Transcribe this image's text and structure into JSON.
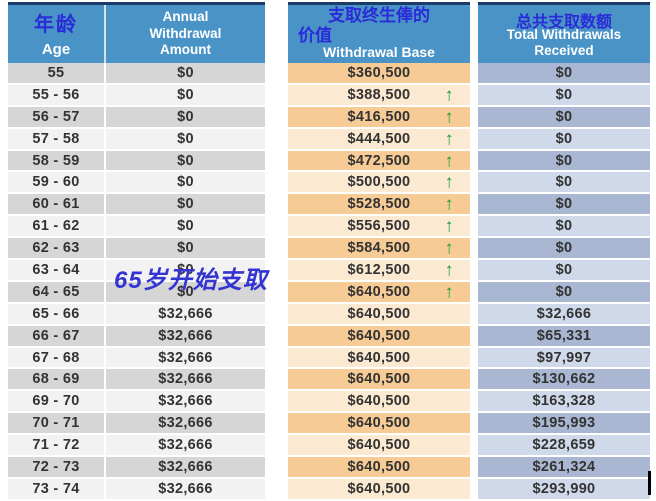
{
  "table": {
    "headers": {
      "age_cn": "年龄",
      "age_en": "Age",
      "annual_lines": [
        "Annual",
        "Withdrawal",
        "Amount"
      ],
      "base_cn_lines": [
        "支取终生俸的",
        "价值"
      ],
      "base_en": "Withdrawal Base",
      "total_cn": "总共支取数额",
      "total_en_lines": [
        "Total Withdrawals",
        "Received"
      ]
    },
    "rows": [
      {
        "age": "55",
        "annual": "$0",
        "base": "$360,500",
        "arrow": false,
        "total": "$0"
      },
      {
        "age": "55 - 56",
        "annual": "$0",
        "base": "$388,500",
        "arrow": true,
        "total": "$0"
      },
      {
        "age": "56 - 57",
        "annual": "$0",
        "base": "$416,500",
        "arrow": true,
        "total": "$0"
      },
      {
        "age": "57 - 58",
        "annual": "$0",
        "base": "$444,500",
        "arrow": true,
        "total": "$0"
      },
      {
        "age": "58 - 59",
        "annual": "$0",
        "base": "$472,500",
        "arrow": true,
        "total": "$0"
      },
      {
        "age": "59 - 60",
        "annual": "$0",
        "base": "$500,500",
        "arrow": true,
        "total": "$0"
      },
      {
        "age": "60 - 61",
        "annual": "$0",
        "base": "$528,500",
        "arrow": true,
        "total": "$0"
      },
      {
        "age": "61 - 62",
        "annual": "$0",
        "base": "$556,500",
        "arrow": true,
        "total": "$0"
      },
      {
        "age": "62 - 63",
        "annual": "$0",
        "base": "$584,500",
        "arrow": true,
        "total": "$0"
      },
      {
        "age": "63 - 64",
        "annual": "$0",
        "base": "$612,500",
        "arrow": true,
        "total": "$0"
      },
      {
        "age": "64 - 65",
        "annual": "$0",
        "base": "$640,500",
        "arrow": true,
        "total": "$0"
      },
      {
        "age": "65 - 66",
        "annual": "$32,666",
        "base": "$640,500",
        "arrow": false,
        "total": "$32,666"
      },
      {
        "age": "66 - 67",
        "annual": "$32,666",
        "base": "$640,500",
        "arrow": false,
        "total": "$65,331"
      },
      {
        "age": "67 - 68",
        "annual": "$32,666",
        "base": "$640,500",
        "arrow": false,
        "total": "$97,997"
      },
      {
        "age": "68 - 69",
        "annual": "$32,666",
        "base": "$640,500",
        "arrow": false,
        "total": "$130,662"
      },
      {
        "age": "69 - 70",
        "annual": "$32,666",
        "base": "$640,500",
        "arrow": false,
        "total": "$163,328"
      },
      {
        "age": "70 - 71",
        "annual": "$32,666",
        "base": "$640,500",
        "arrow": false,
        "total": "$195,993"
      },
      {
        "age": "71 - 72",
        "annual": "$32,666",
        "base": "$640,500",
        "arrow": false,
        "total": "$228,659"
      },
      {
        "age": "72 - 73",
        "annual": "$32,666",
        "base": "$640,500",
        "arrow": false,
        "total": "$261,324"
      },
      {
        "age": "73 - 74",
        "annual": "$32,666",
        "base": "$640,500",
        "arrow": false,
        "total": "$293,990"
      }
    ]
  },
  "annotation": {
    "text": "65岁开始支取"
  },
  "icons": {
    "increase_arrow": "↑"
  },
  "colors": {
    "header_blue": "#4A93C7",
    "header_top_border": "#1B3C68",
    "chinese_blue": "#2B2BD8",
    "row_gray_dark": "#D6D6D6",
    "row_gray_light": "#F2F2F2",
    "row_orange_dark": "#F6CB96",
    "row_orange_light": "#FBE9D1",
    "row_slate_dark": "#A9B7D3",
    "row_slate_light": "#CFD9E9",
    "arrow_green": "#1AA23C",
    "annotation_blue": "#3434D2",
    "value_text": "#333333"
  }
}
